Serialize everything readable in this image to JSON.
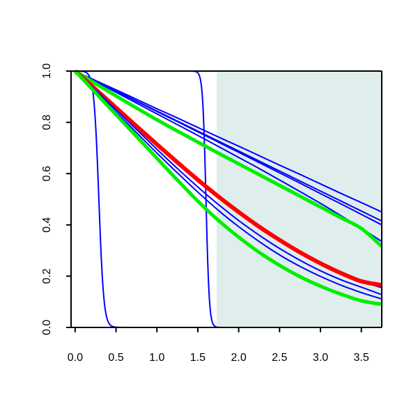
{
  "chart_data": {
    "type": "line",
    "title": "",
    "xlabel": "",
    "ylabel": "",
    "xlim": [
      -0.05,
      3.75
    ],
    "ylim": [
      0.0,
      1.0
    ],
    "x_ticks": [
      0.0,
      0.5,
      1.0,
      1.5,
      2.0,
      2.5,
      3.0,
      3.5
    ],
    "x_tick_labels": [
      "0.0",
      "0.5",
      "1.0",
      "1.5",
      "2.0",
      "2.5",
      "3.0",
      "3.5"
    ],
    "y_ticks": [
      0.0,
      0.2,
      0.4,
      0.6,
      0.8,
      1.0
    ],
    "y_tick_labels": [
      "0.0",
      "0.2",
      "0.4",
      "0.6",
      "0.8",
      "1.0"
    ],
    "grid": false,
    "legend": "none",
    "shaded_region": {
      "x_start": 1.73,
      "x_end": 3.75,
      "color": "#e0eded"
    },
    "x_sample": [
      0.0,
      0.25,
      0.5,
      0.75,
      1.0,
      1.25,
      1.5,
      1.75,
      2.0,
      2.25,
      2.5,
      2.75,
      3.0,
      3.25,
      3.5,
      3.75
    ],
    "series": [
      {
        "role": "blue-linear",
        "color": "#0000ff",
        "width": 2,
        "values": [
          1.0,
          0.963,
          0.927,
          0.89,
          0.853,
          0.817,
          0.78,
          0.743,
          0.707,
          0.67,
          0.633,
          0.597,
          0.56,
          0.523,
          0.487,
          0.45
        ]
      },
      {
        "role": "blue-linear",
        "color": "#0000ff",
        "width": 2,
        "values": [
          1.0,
          0.961,
          0.922,
          0.883,
          0.844,
          0.805,
          0.766,
          0.727,
          0.688,
          0.649,
          0.61,
          0.571,
          0.532,
          0.493,
          0.454,
          0.415
        ]
      },
      {
        "role": "blue-linear",
        "color": "#0000ff",
        "width": 2,
        "values": [
          1.0,
          0.961,
          0.922,
          0.882,
          0.842,
          0.803,
          0.763,
          0.723,
          0.683,
          0.643,
          0.603,
          0.563,
          0.522,
          0.482,
          0.441,
          0.4
        ]
      },
      {
        "role": "blue-linear",
        "color": "#0000ff",
        "width": 2,
        "values": [
          1.0,
          0.959,
          0.917,
          0.875,
          0.833,
          0.791,
          0.749,
          0.706,
          0.663,
          0.62,
          0.575,
          0.53,
          0.484,
          0.436,
          0.387,
          0.335
        ]
      },
      {
        "role": "green-upper",
        "color": "#00ee00",
        "width": 5,
        "values": [
          1.0,
          0.951,
          0.903,
          0.856,
          0.81,
          0.766,
          0.723,
          0.68,
          0.638,
          0.596,
          0.554,
          0.512,
          0.47,
          0.428,
          0.386,
          0.316
        ]
      },
      {
        "role": "blue-curved",
        "color": "#0000ff",
        "width": 2,
        "values": [
          1.0,
          0.93,
          0.859,
          0.788,
          0.718,
          0.648,
          0.58,
          0.515,
          0.454,
          0.398,
          0.345,
          0.297,
          0.254,
          0.215,
          0.18,
          0.155
        ]
      },
      {
        "role": "red-mean",
        "color": "#ff0000",
        "width": 6,
        "values": [
          1.0,
          0.929,
          0.857,
          0.785,
          0.714,
          0.644,
          0.576,
          0.511,
          0.45,
          0.393,
          0.341,
          0.293,
          0.25,
          0.212,
          0.18,
          0.165
        ]
      },
      {
        "role": "blue-curved",
        "color": "#0000ff",
        "width": 2,
        "values": [
          1.0,
          0.925,
          0.849,
          0.772,
          0.695,
          0.62,
          0.548,
          0.48,
          0.417,
          0.36,
          0.308,
          0.262,
          0.221,
          0.186,
          0.157,
          0.128
        ]
      },
      {
        "role": "blue-curved",
        "color": "#0000ff",
        "width": 2,
        "values": [
          1.0,
          0.92,
          0.84,
          0.76,
          0.68,
          0.603,
          0.528,
          0.457,
          0.393,
          0.335,
          0.283,
          0.238,
          0.199,
          0.165,
          0.136,
          0.111
        ]
      },
      {
        "role": "green-lower",
        "color": "#00ee00",
        "width": 5,
        "values": [
          1.0,
          0.915,
          0.83,
          0.745,
          0.66,
          0.575,
          0.493,
          0.418,
          0.352,
          0.293,
          0.242,
          0.198,
          0.161,
          0.13,
          0.104,
          0.09
        ]
      }
    ],
    "step_series": [
      {
        "role": "blue-step-early",
        "color": "#0000ff",
        "width": 2,
        "center": 0.29,
        "spread": 0.03
      },
      {
        "role": "blue-step-late",
        "color": "#0000ff",
        "width": 2,
        "center": 1.6,
        "spread": 0.02
      }
    ]
  }
}
